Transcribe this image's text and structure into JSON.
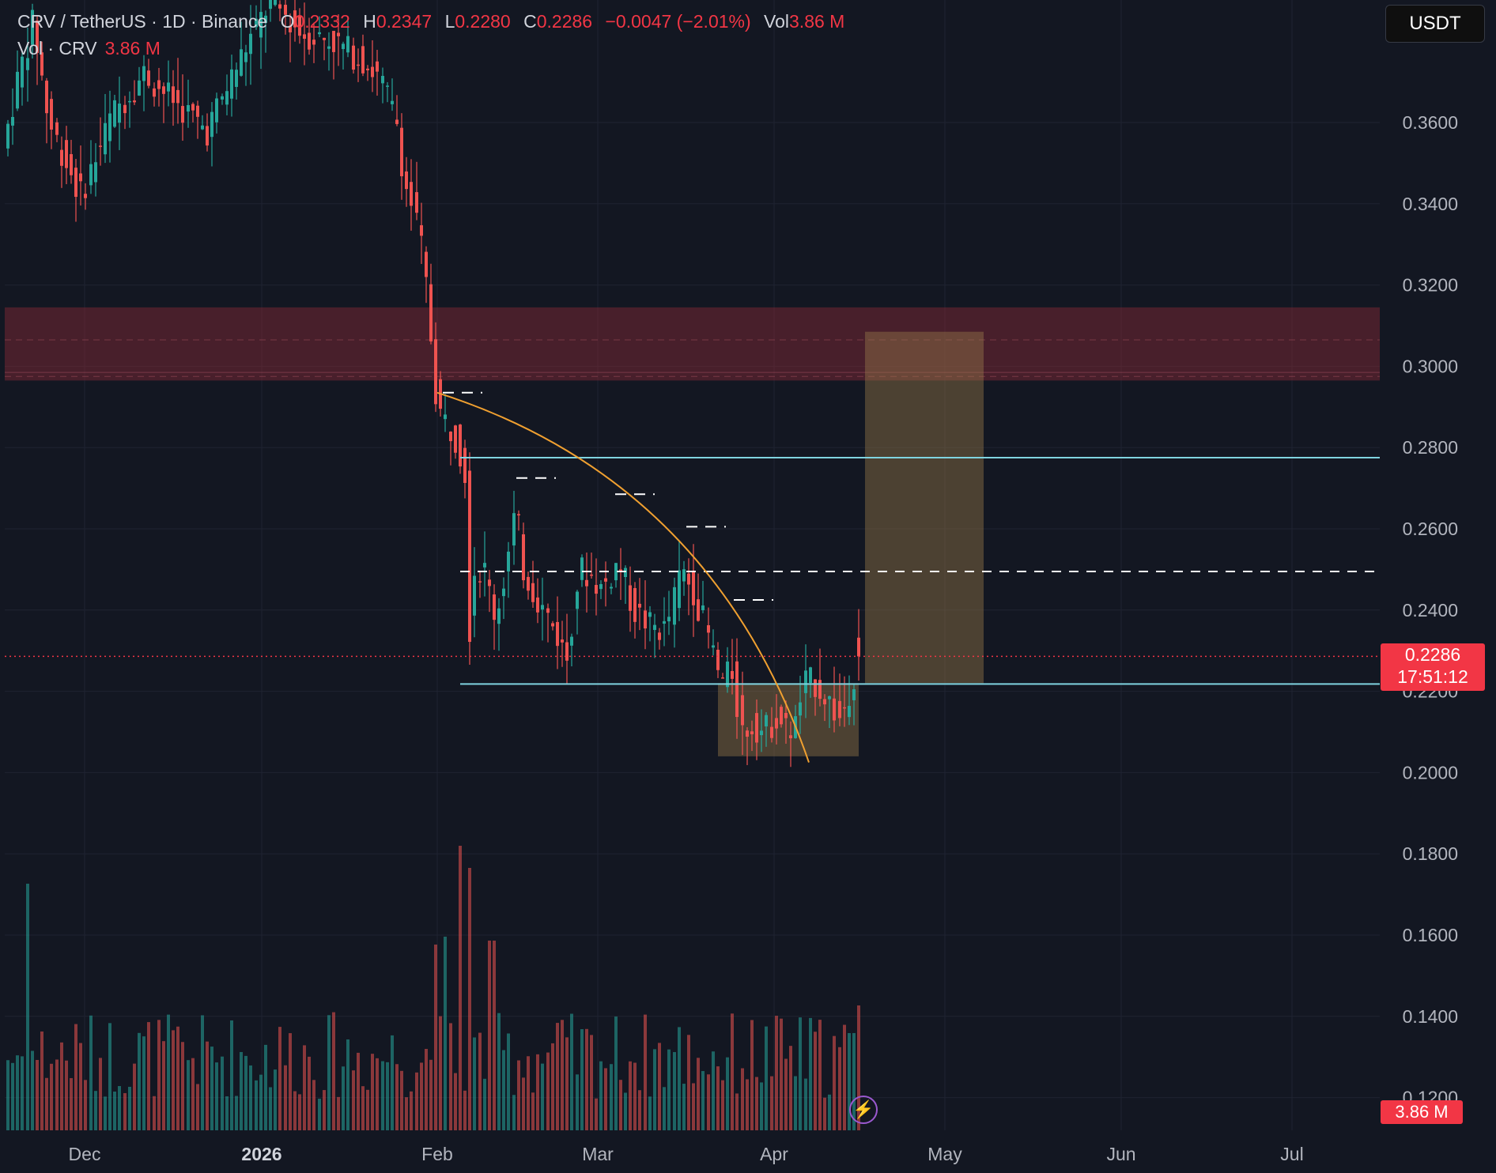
{
  "header": {
    "symbol": "CRV / TetherUS · 1D · Binance",
    "open_label": "O",
    "open": "0.2332",
    "high_label": "H",
    "high": "0.2347",
    "low_label": "L",
    "low": "0.2280",
    "close_label": "C",
    "close": "0.2286",
    "change": "−0.0047 (−2.01%)",
    "vol_label": "Vol",
    "vol": "3.86 M",
    "vol_indicator": "Vol · CRV",
    "vol_indicator_value": "3.86 M"
  },
  "currency_button": "USDT",
  "price_axis": {
    "labels": [
      "0.3600",
      "0.3400",
      "0.3200",
      "0.3000",
      "0.2800",
      "0.2600",
      "0.2400",
      "0.2200",
      "0.2000",
      "0.1800",
      "0.1600",
      "0.1400",
      "0.1200"
    ],
    "current_price": "0.2286",
    "countdown": "17:51:12",
    "volume_tag": "3.86 M"
  },
  "time_axis": {
    "labels": [
      "Dec",
      "2026",
      "Feb",
      "Mar",
      "Apr",
      "May",
      "Jun",
      "Jul"
    ]
  },
  "colors": {
    "up": "#26a69a",
    "down": "#ef5350",
    "background": "#131722",
    "support": "#7fd3e0",
    "curve": "#f0a030"
  },
  "chart_data": {
    "type": "candlestick",
    "symbol": "CRV/USDT",
    "interval": "1D",
    "y_range": [
      0.19,
      0.37
    ],
    "resistance_zone": [
      0.2965,
      0.3145
    ],
    "horizontal_levels": {
      "resistance_line": 0.2775,
      "midline_dashed": 0.2495,
      "support_line": 0.2218
    },
    "accumulation_box": [
      0.204,
      0.222
    ],
    "target_box": [
      0.222,
      0.3085
    ],
    "last_close": 0.2286
  }
}
